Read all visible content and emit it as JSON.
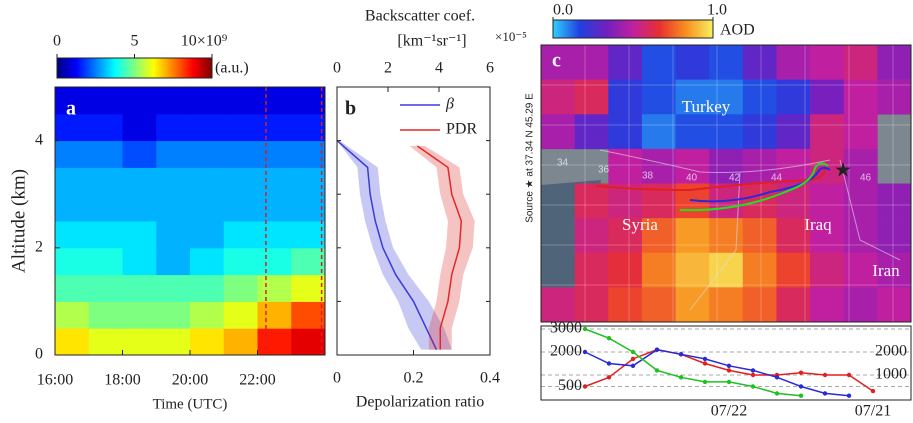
{
  "chart_data": [
    {
      "type": "heatmap",
      "panel": "a",
      "xlabel": "Time (UTC)",
      "ylabel": "Altitude (km)",
      "xlim": [
        16,
        24
      ],
      "ylim": [
        0,
        5
      ],
      "xticks": [
        {
          "value": 16,
          "label": "16:00"
        },
        {
          "value": 18,
          "label": "18:00"
        },
        {
          "value": 20,
          "label": "20:00"
        },
        {
          "value": 22,
          "label": "22:00"
        }
      ],
      "yticks": [
        0,
        2,
        4
      ],
      "x_bins": [
        16,
        17,
        18,
        19,
        20,
        21,
        22,
        23,
        24
      ],
      "y_bins": [
        0,
        0.5,
        1,
        1.5,
        2,
        2.5,
        3,
        3.5,
        4,
        4.5,
        5
      ],
      "values": [
        [
          6.5,
          6,
          6,
          6,
          6.5,
          7,
          8.5,
          9
        ],
        [
          5.5,
          5,
          5,
          5,
          5.5,
          6,
          7,
          8
        ],
        [
          4.5,
          4.5,
          4.5,
          4.5,
          4.5,
          5,
          5.5,
          6
        ],
        [
          4,
          4,
          3.5,
          3,
          3.5,
          4,
          4,
          4.5
        ],
        [
          3.5,
          3.5,
          3.5,
          3,
          3,
          3.5,
          3.5,
          3.5
        ],
        [
          3,
          3,
          3,
          3,
          3,
          3,
          3,
          3
        ],
        [
          3,
          3,
          3,
          3,
          3,
          3,
          3,
          3
        ],
        [
          2.5,
          2.5,
          2,
          2.5,
          2.5,
          2.5,
          2.5,
          2.5
        ],
        [
          1.5,
          1.5,
          1,
          1.5,
          1.5,
          1.5,
          1.5,
          1.5
        ],
        [
          1,
          1,
          1,
          1,
          1,
          1,
          1,
          1
        ]
      ],
      "vlines": [
        22.25,
        23.9
      ],
      "vline_color": "#d62020",
      "colorbar_lim": [
        0,
        10
      ],
      "colorbar_ticks": [
        0,
        5,
        {
          "value": 10,
          "label": "10×10⁹"
        }
      ],
      "colorbar_unit": "(a.u.)",
      "colors": [
        "#00007f",
        "#0000ff",
        "#007fff",
        "#00ffff",
        "#7fff7f",
        "#ffff00",
        "#ff7f00",
        "#ff0000",
        "#7f0000"
      ]
    },
    {
      "type": "profile",
      "panel": "b",
      "x2label": "Backscatter coef.",
      "x2unit": "[km⁻¹sr⁻¹]",
      "x2scale": "×10⁻⁵",
      "xlabel": "Depolarization ratio",
      "xlim": [
        0,
        0.4
      ],
      "xticks": [
        0,
        0.2,
        0.4
      ],
      "x2lim": [
        0,
        6
      ],
      "x2ticks": [
        0,
        2,
        4,
        6
      ],
      "ylim": [
        0,
        5
      ],
      "yticks": [
        0,
        1,
        2,
        3,
        4
      ],
      "series": [
        {
          "name": "β",
          "color": "#3b3bd8",
          "axis": "x2",
          "altitude": [
            4.0,
            3.5,
            3.0,
            2.5,
            2.0,
            1.5,
            1.0,
            0.5,
            0.1
          ],
          "values": [
            0,
            1.2,
            1.3,
            1.5,
            1.8,
            2.3,
            3.0,
            3.5,
            3.9
          ],
          "errors": [
            0.1,
            0.4,
            0.4,
            0.4,
            0.4,
            0.5,
            0.6,
            0.7,
            0.6
          ]
        },
        {
          "name": "PDR",
          "color": "#e02828",
          "axis": "x",
          "altitude": [
            3.9,
            3.5,
            3.0,
            2.5,
            2.0,
            1.5,
            1.0,
            0.5,
            0.1
          ],
          "values": [
            0.21,
            0.29,
            0.3,
            0.325,
            0.32,
            0.3,
            0.29,
            0.27,
            0.27
          ],
          "errors": [
            0.02,
            0.03,
            0.03,
            0.035,
            0.035,
            0.03,
            0.03,
            0.03,
            0.03
          ]
        }
      ]
    },
    {
      "type": "map",
      "panel": "c",
      "colorbar_label": "AOD",
      "colorbar_lim": [
        0,
        1
      ],
      "colorbar_ticks": [
        {
          "value": 0,
          "label": "0.0"
        },
        {
          "value": 1,
          "label": "1.0"
        }
      ],
      "colors": [
        "#30d0ff",
        "#2040e0",
        "#7020c0",
        "#c020a0",
        "#e83030",
        "#f89020",
        "#f8f060"
      ],
      "aod": [
        [
          0.45,
          0.45,
          0.3,
          0.15,
          0.2,
          0.15,
          0.3,
          0.45,
          0.5,
          0.55,
          0.4
        ],
        [
          0.55,
          0.6,
          0.2,
          0.15,
          0.1,
          0.1,
          0.15,
          0.2,
          0.35,
          0.5,
          0.45
        ],
        [
          0.45,
          0.3,
          0.2,
          0.1,
          0.15,
          0.15,
          0.2,
          0.3,
          0.55,
          0.5,
          null
        ],
        [
          null,
          null,
          0.5,
          0.45,
          0.5,
          0.4,
          0.45,
          0.5,
          0.55,
          0.45,
          null
        ],
        [
          null,
          0.6,
          0.55,
          0.6,
          0.7,
          0.55,
          0.6,
          0.55,
          0.5,
          0.45,
          0.4
        ],
        [
          null,
          0.55,
          0.6,
          0.75,
          0.85,
          0.8,
          0.75,
          0.6,
          0.5,
          0.45,
          0.4
        ],
        [
          null,
          0.6,
          0.65,
          0.8,
          0.9,
          0.95,
          0.8,
          0.7,
          0.55,
          0.5,
          0.45
        ],
        [
          0.55,
          0.6,
          0.7,
          0.75,
          0.85,
          0.8,
          0.75,
          0.6,
          0.5,
          0.45,
          0.5
        ]
      ],
      "region_labels": [
        "Turkey",
        "Syria",
        "Iraq",
        "Iran"
      ],
      "grid_labels": [
        "34",
        "36",
        "38",
        "40",
        "42",
        "44",
        "46"
      ],
      "source_label": "Source ★ at 37.34 N 45.29 E"
    },
    {
      "type": "line",
      "categories": [
        null,
        null,
        null,
        null,
        null,
        null,
        "07/22",
        null,
        null,
        null,
        null,
        null,
        "07/21"
      ],
      "ylim": [
        0,
        3000
      ],
      "yticks": [
        500,
        2000,
        3000
      ],
      "y2lim": [
        0,
        3000
      ],
      "y2ticks": [
        1000,
        2000
      ],
      "series": [
        {
          "color": "#e02020",
          "values": [
            500,
            900,
            1700,
            2100,
            1900,
            1500,
            1200,
            1000,
            1000,
            1100,
            1000,
            1000,
            300
          ]
        },
        {
          "color": "#2a2ad8",
          "values": [
            2000,
            1500,
            1400,
            2100,
            1900,
            1700,
            1400,
            1200,
            900,
            500,
            200,
            100,
            null
          ]
        },
        {
          "color": "#20c020",
          "values": [
            3000,
            2600,
            2000,
            1200,
            900,
            700,
            700,
            500,
            200,
            100,
            null,
            null,
            null
          ]
        }
      ]
    }
  ]
}
